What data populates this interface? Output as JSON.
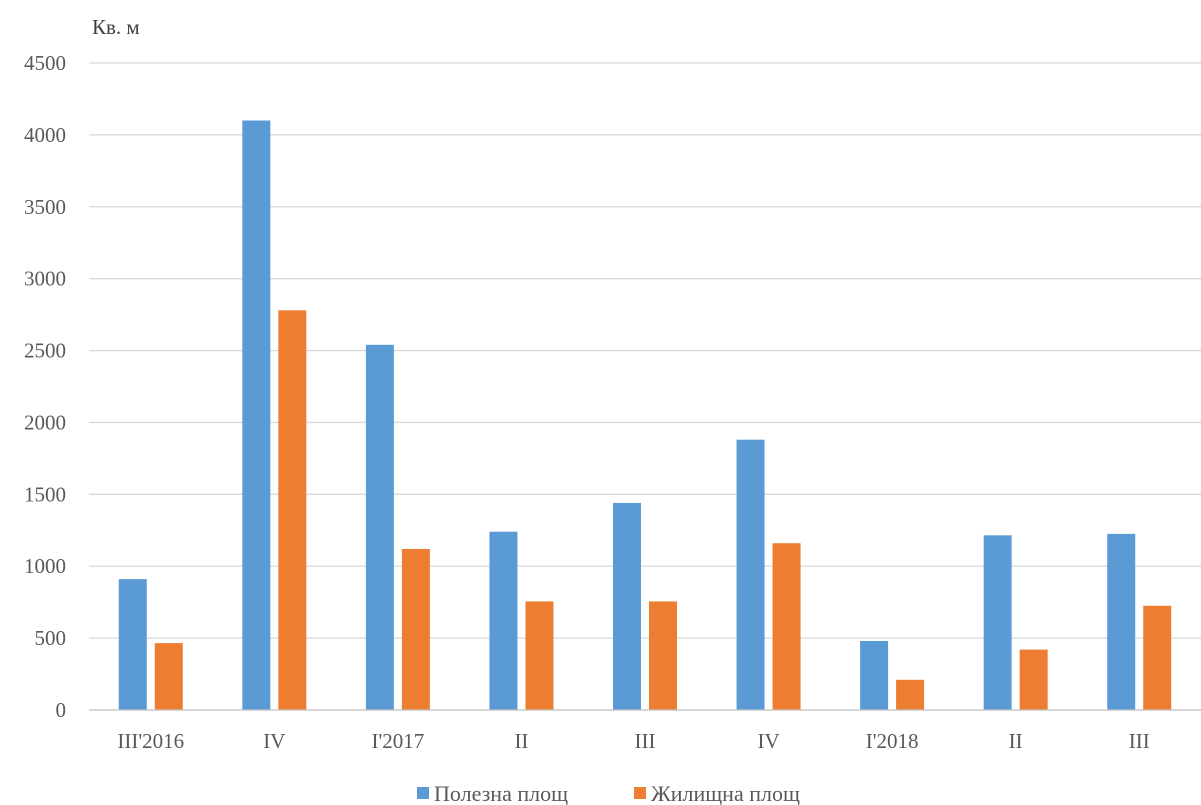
{
  "chart_data": {
    "type": "bar",
    "ylabel": "Кв. м",
    "categories": [
      "III'2016",
      "IV",
      "I'2017",
      "II",
      "III",
      "IV",
      "I'2018",
      "II",
      "III"
    ],
    "series": [
      {
        "name": "Полезна площ",
        "values": [
          910,
          4100,
          2540,
          1240,
          1440,
          1880,
          480,
          1215,
          1225
        ],
        "color": "#5b9bd5"
      },
      {
        "name": "Жилищна площ",
        "values": [
          465,
          2780,
          1120,
          755,
          755,
          1160,
          210,
          420,
          725
        ],
        "color": "#ed7d31"
      }
    ],
    "ylim": [
      0,
      4500
    ],
    "yticks": [
      0,
      500,
      1000,
      1500,
      2000,
      2500,
      3000,
      3500,
      4000,
      4500
    ],
    "grid": true,
    "legend_position": "bottom"
  }
}
